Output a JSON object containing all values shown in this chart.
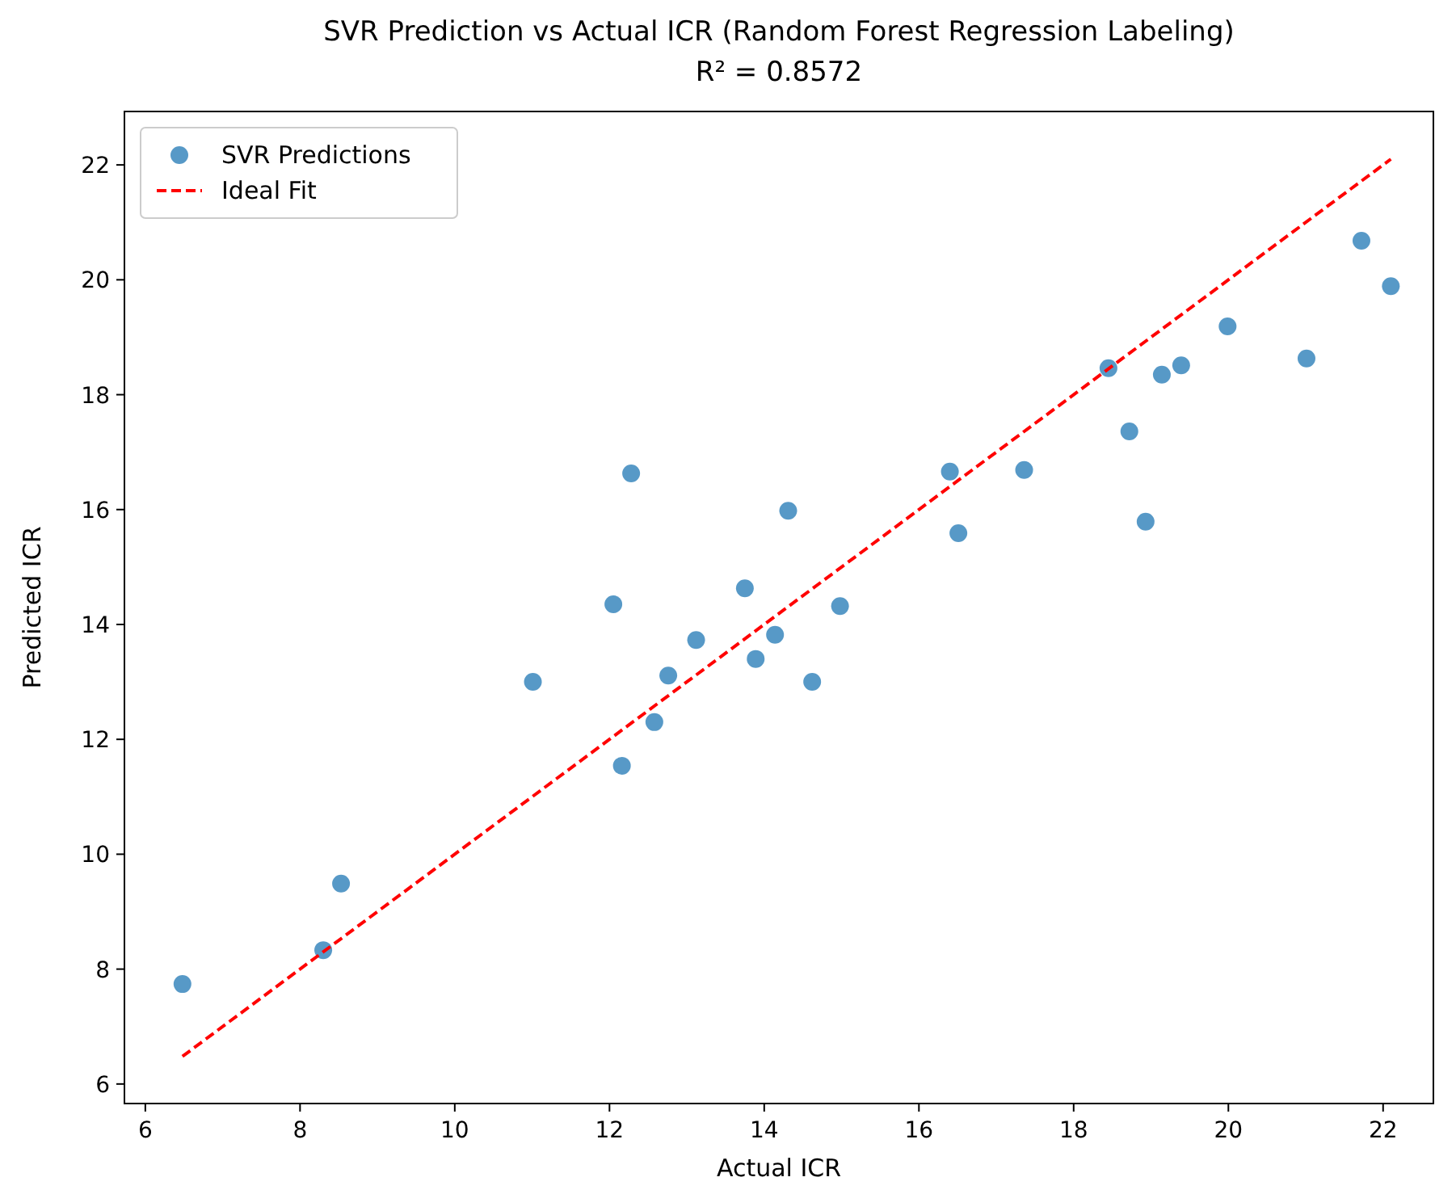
{
  "chart_data": {
    "type": "scatter",
    "title": "SVR Prediction vs Actual ICR (Random Forest Regression Labeling)",
    "subtitle": "R² = 0.8572",
    "xlabel": "Actual ICR",
    "ylabel": "Predicted ICR",
    "xlim": [
      5.73,
      22.65
    ],
    "ylim": [
      5.66,
      22.93
    ],
    "xticks": [
      6,
      8,
      10,
      12,
      14,
      16,
      18,
      20,
      22
    ],
    "yticks": [
      6,
      8,
      10,
      12,
      14,
      16,
      18,
      20,
      22
    ],
    "grid": false,
    "legend": "top left",
    "series": [
      {
        "name": "SVR Predictions",
        "marker": "circle",
        "color": "#1f77b4",
        "x": [
          6.48,
          8.3,
          8.53,
          11.01,
          12.05,
          12.16,
          12.28,
          12.58,
          12.76,
          13.12,
          13.75,
          13.89,
          14.14,
          14.31,
          14.62,
          14.98,
          16.4,
          16.51,
          17.36,
          18.45,
          18.72,
          18.93,
          19.14,
          19.39,
          19.99,
          21.01,
          21.72,
          22.1
        ],
        "values": [
          7.74,
          8.33,
          9.49,
          13.0,
          14.35,
          11.54,
          16.63,
          12.3,
          13.11,
          13.73,
          14.63,
          13.4,
          13.82,
          15.98,
          13.0,
          14.32,
          16.66,
          15.59,
          16.69,
          18.46,
          17.36,
          15.79,
          18.35,
          18.51,
          19.19,
          18.63,
          20.68,
          19.89
        ]
      },
      {
        "name": "Ideal Fit",
        "type": "line",
        "color": "#ff0000",
        "line_style": "dashed",
        "x": [
          6.48,
          22.1
        ],
        "values": [
          6.48,
          22.1
        ]
      }
    ]
  }
}
